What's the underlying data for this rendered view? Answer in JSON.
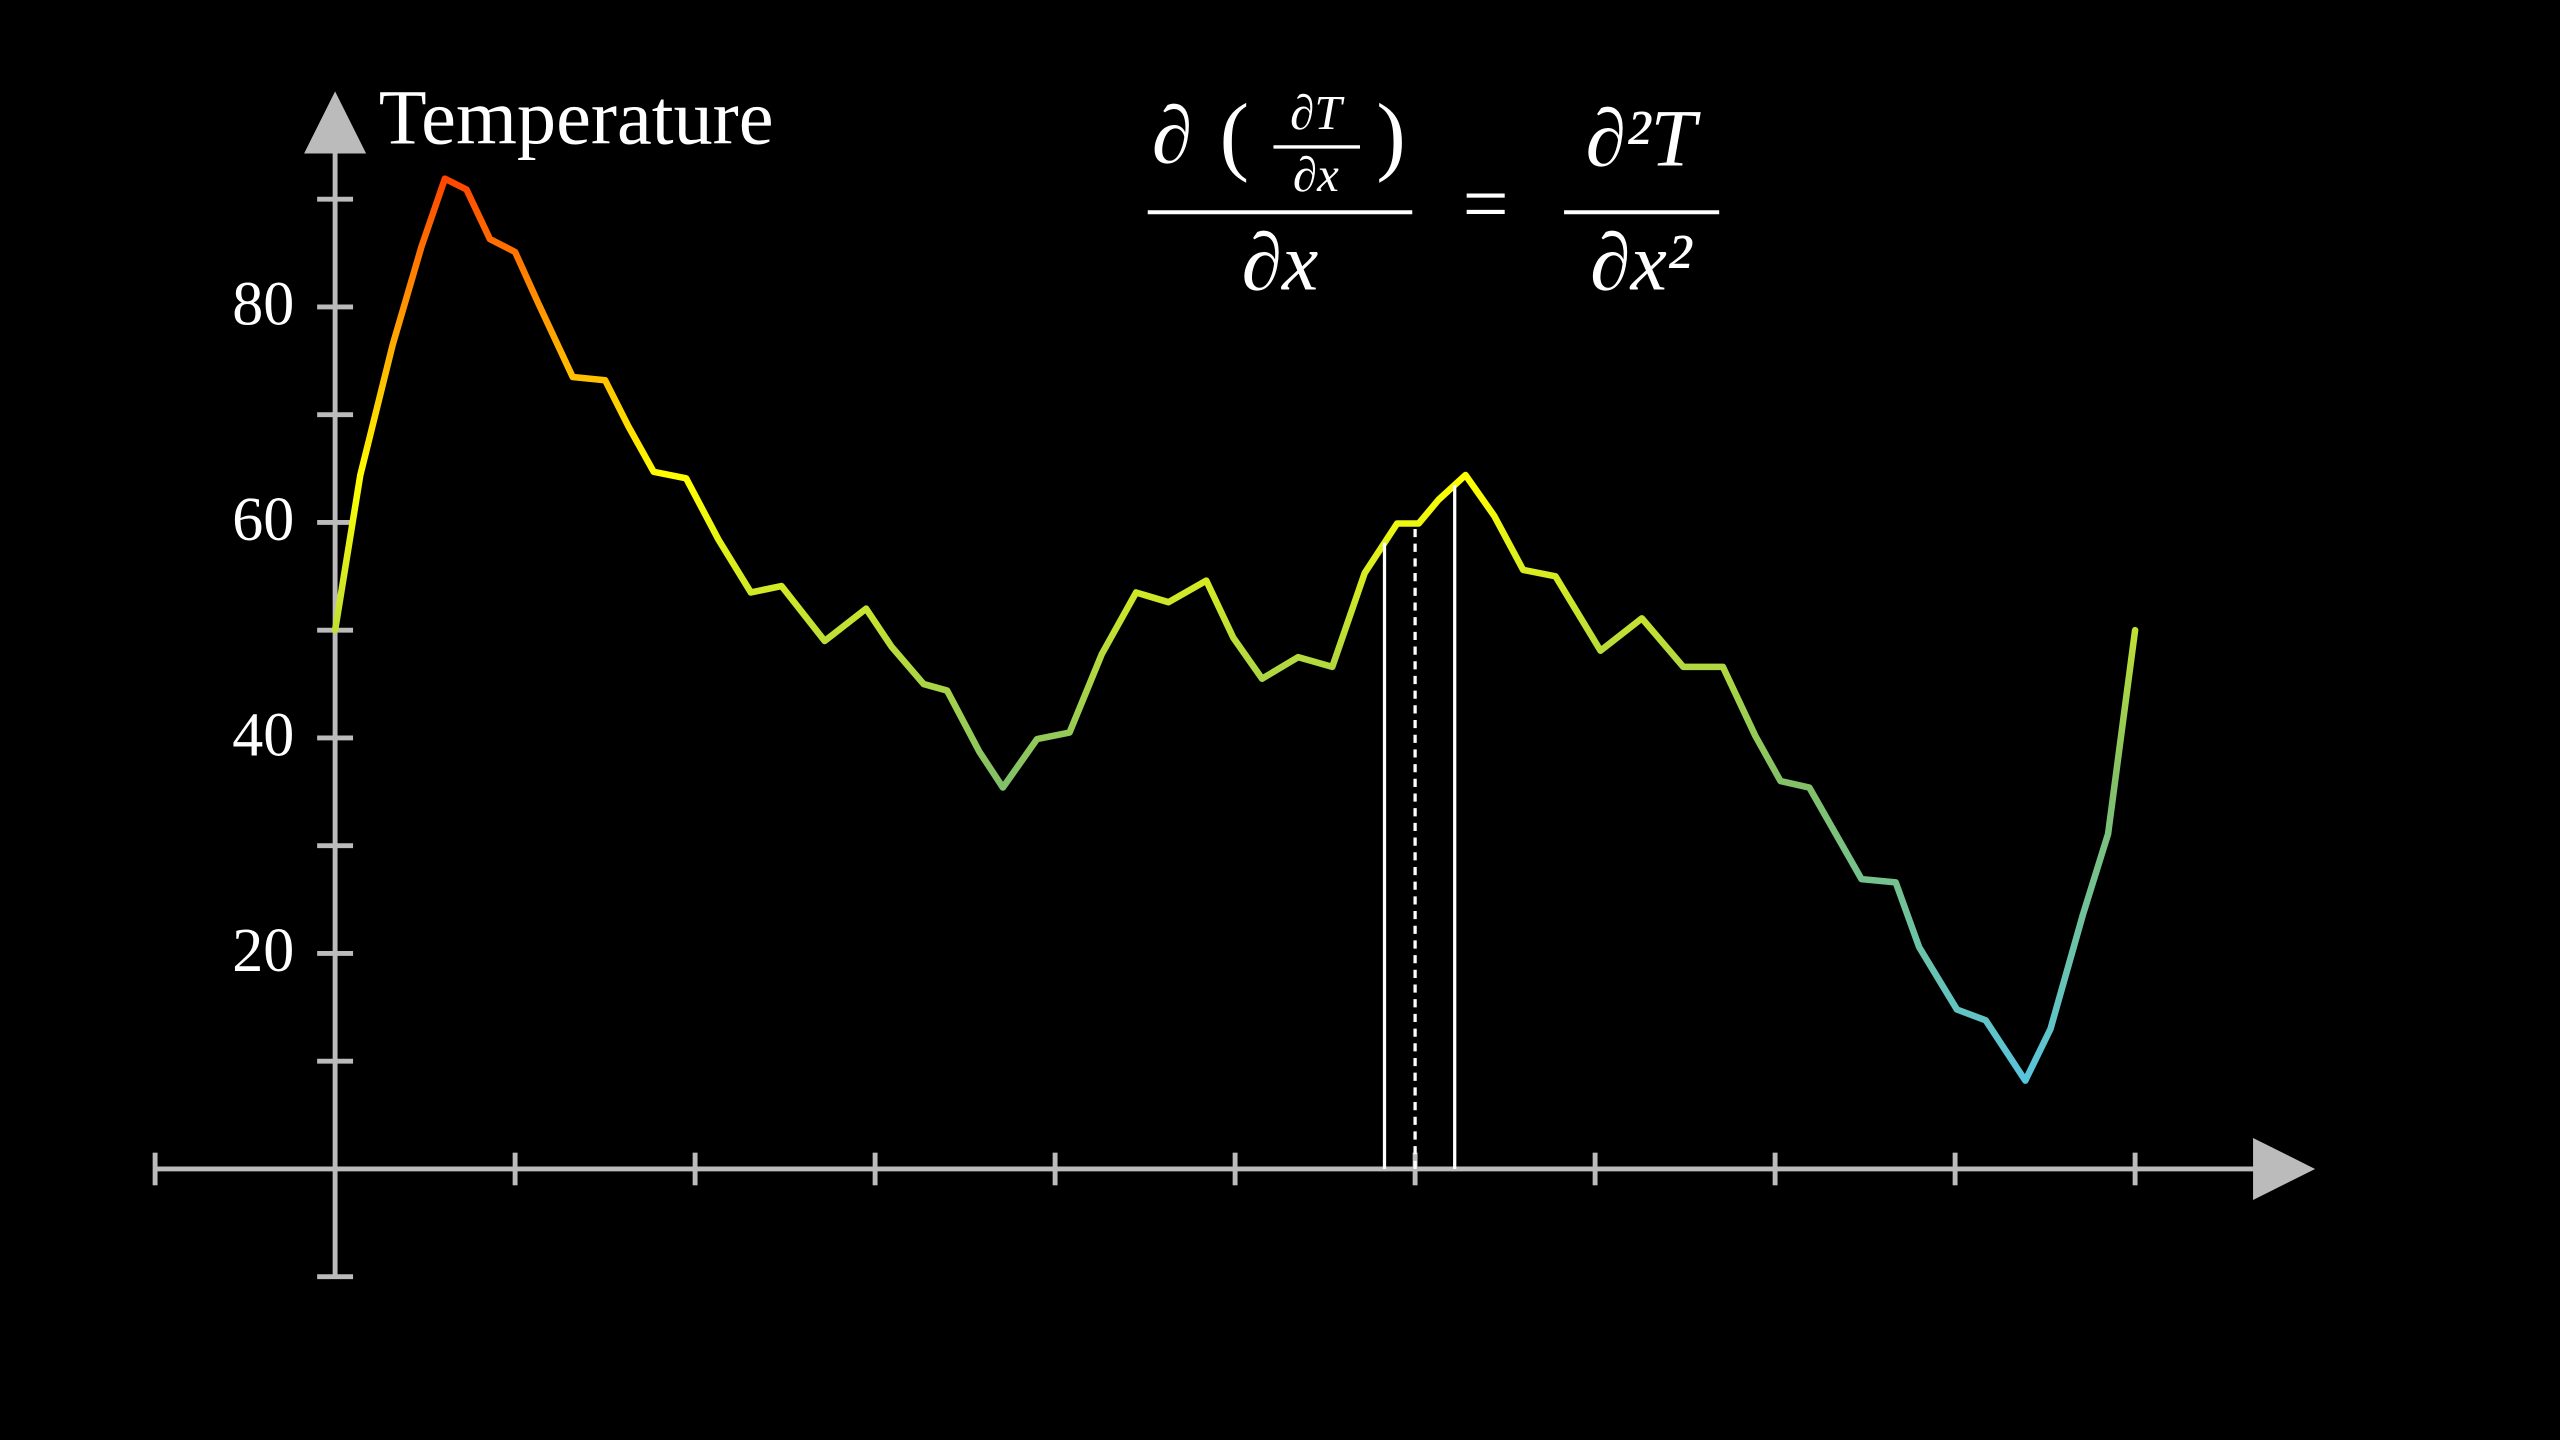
{
  "chart_data": {
    "type": "line",
    "y_axis_label": "Temperature",
    "x": [
      0,
      0.14,
      0.32,
      0.48,
      0.61,
      0.73,
      0.86,
      1.0,
      1.13,
      1.32,
      1.5,
      1.63,
      1.77,
      1.95,
      2.13,
      2.31,
      2.48,
      2.72,
      2.95,
      3.09,
      3.27,
      3.4,
      3.58,
      3.71,
      3.9,
      4.08,
      4.26,
      4.45,
      4.63,
      4.84,
      4.99,
      5.15,
      5.35,
      5.54,
      5.72,
      5.9,
      6.02,
      6.13,
      6.28,
      6.44,
      6.6,
      6.78,
      7.03,
      7.26,
      7.49,
      7.71,
      7.89,
      8.03,
      8.19,
      8.48,
      8.67,
      8.8,
      9.01,
      9.17,
      9.39,
      9.53,
      9.71,
      9.85,
      10
    ],
    "series": [
      {
        "name": "Temperature",
        "colors": [
          "#ff4500",
          "#ffff00",
          "#83c167",
          "#58c4dd"
        ],
        "values": [
          50,
          64.4,
          76.5,
          85.6,
          91.9,
          90.9,
          86.3,
          85.1,
          80.3,
          73.5,
          73.2,
          68.9,
          64.7,
          64.1,
          58.4,
          53.5,
          54.1,
          49,
          52,
          48.5,
          45,
          44.4,
          38.7,
          35.4,
          39.9,
          40.5,
          47.8,
          53.5,
          52.6,
          54.6,
          49.3,
          45.5,
          47.5,
          46.6,
          55.3,
          59.9,
          59.9,
          62.1,
          64.4,
          60.6,
          55.6,
          55,
          48.1,
          51.1,
          46.6,
          46.6,
          40.2,
          36,
          35.4,
          26.9,
          26.6,
          20.6,
          14.8,
          13.8,
          8.2,
          13,
          23.6,
          31.1,
          50
        ]
      }
    ],
    "xlim": [
      -1,
      11
    ],
    "ylim": [
      -10,
      100
    ],
    "xticks": [
      -1,
      1,
      2,
      3,
      4,
      5,
      6,
      7,
      8,
      9,
      10
    ],
    "yticks": [
      20,
      40,
      60,
      80
    ],
    "y_minor_ticks": [
      -10,
      10,
      30,
      50,
      70,
      90
    ],
    "axis_color": "#bbbbbb",
    "guide_lines": {
      "x": [
        5.83,
        6.0,
        6.22
      ],
      "styles": [
        "solid",
        "dashed",
        "solid"
      ],
      "color": "#ffffff"
    },
    "equation": {
      "lhs_numerator": "∂",
      "lhs_inner_numerator": "∂T",
      "lhs_inner_denominator": "∂x",
      "lhs_denominator": "∂x",
      "equals": "=",
      "rhs_numerator": "∂²T",
      "rhs_denominator": "∂x²",
      "highlight_color": "#fc6255"
    }
  }
}
